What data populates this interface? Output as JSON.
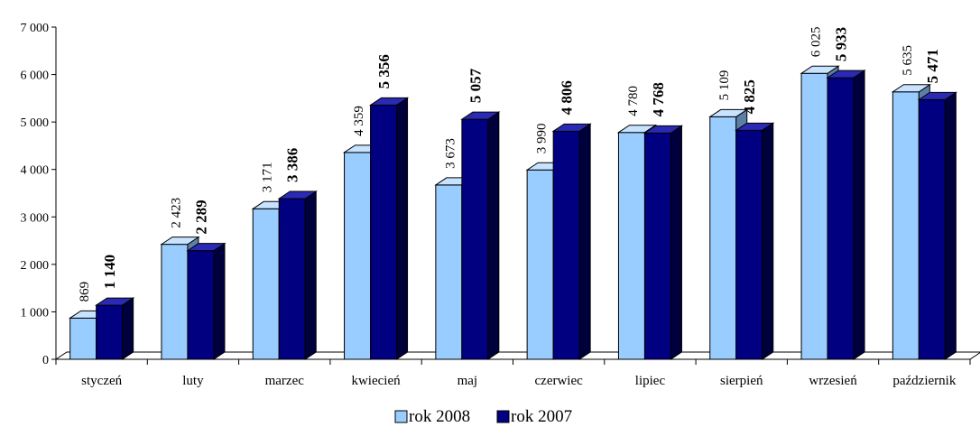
{
  "colors": {
    "rok_2008_front": "#99ccff",
    "rok_2008_side": "#5b7fa6",
    "rok_2008_top": "#c7e3ff",
    "rok_2007_front": "#000080",
    "rok_2007_side": "#00003c",
    "rok_2007_top": "#2a2ab4",
    "floor": "#ffffff",
    "axis": "#000000"
  },
  "chart_data": {
    "type": "bar",
    "style": "3d-clustered-column",
    "categories": [
      "styczeń",
      "luty",
      "marzec",
      "kwiecień",
      "maj",
      "czerwiec",
      "lipiec",
      "sierpień",
      "wrzesień",
      "październik"
    ],
    "series": [
      {
        "name": "rok 2008",
        "values": [
          869,
          2423,
          3171,
          4359,
          3673,
          3990,
          4780,
          5109,
          6025,
          5635
        ],
        "labels": [
          "869",
          "2 423",
          "3 171",
          "4 359",
          "3 673",
          "3 990",
          "4 780",
          "5 109",
          "6 025",
          "5 635"
        ]
      },
      {
        "name": "rok 2007",
        "values": [
          1140,
          2289,
          3386,
          5356,
          5057,
          4806,
          4768,
          4825,
          5933,
          5471
        ],
        "labels": [
          "1 140",
          "2 289",
          "3 386",
          "5 356",
          "5 057",
          "4 806",
          "4 768",
          "4 825",
          "5 933",
          "5 471"
        ]
      }
    ],
    "ylim": [
      0,
      7000
    ],
    "yticks": [
      0,
      1000,
      2000,
      3000,
      4000,
      5000,
      6000,
      7000
    ],
    "ytick_labels": [
      "0",
      "1 000",
      "2 000",
      "3 000",
      "4 000",
      "5 000",
      "6 000",
      "7 000"
    ],
    "data_label_orientation": "vertical",
    "legend_position": "bottom",
    "grid": false
  }
}
